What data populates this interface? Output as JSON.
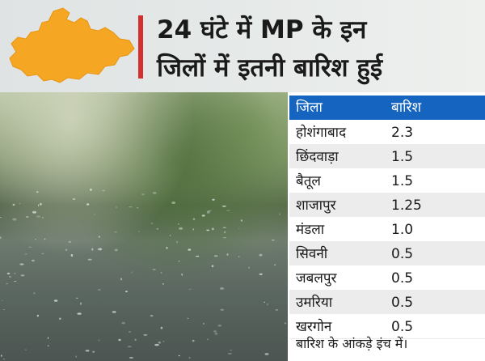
{
  "headline": {
    "line1": "24 घंटे में MP के इन",
    "line2": "जिलों में इतनी बारिश हुई"
  },
  "map": {
    "icon": "madhya-pradesh-map-icon",
    "color": "#f5a623"
  },
  "accent_color": "#d32f2f",
  "table": {
    "header_color": "#1565c0",
    "columns": [
      "जिला",
      "बारिश"
    ],
    "rows": [
      {
        "district": "होशंगाबाद",
        "rain": "2.3"
      },
      {
        "district": "छिंदवाड़ा",
        "rain": "1.5"
      },
      {
        "district": "बैतूल",
        "rain": "1.5"
      },
      {
        "district": "शाजापुर",
        "rain": "1.25"
      },
      {
        "district": "मंडला",
        "rain": "1.0"
      },
      {
        "district": "सिवनी",
        "rain": "0.5"
      },
      {
        "district": "जबलपुर",
        "rain": "0.5"
      },
      {
        "district": "उमरिया",
        "rain": "0.5"
      },
      {
        "district": "खरगोन",
        "rain": "0.5"
      }
    ],
    "footnote": "बारिश के आंकड़े इंच में।"
  }
}
